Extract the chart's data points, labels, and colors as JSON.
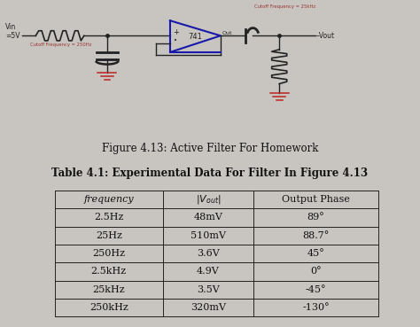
{
  "fig_caption": "Figure 4.13: Active Filter For Homework",
  "table_caption": "Table 4.1: Experimental Data For Filter In Figure 4.13",
  "rows": [
    [
      "2.5Hz",
      "48mV",
      "89°"
    ],
    [
      "25Hz",
      "510mV",
      "88.7°"
    ],
    [
      "250Hz",
      "3.6V",
      "45°"
    ],
    [
      "2.5kHz",
      "4.9V",
      "0°"
    ],
    [
      "25kHz",
      "3.5V",
      "-45°"
    ],
    [
      "250kHz",
      "320mV",
      "-130°"
    ]
  ],
  "background_color": "#c8c5c0",
  "table_edge_color": "#222222",
  "text_color": "#111111",
  "circuit_color": "#1a1aaa",
  "wire_color": "#222222",
  "red_text_color": "#993333",
  "cutoff_label_left": "Cutoff Frequency = 250Hz",
  "cutoff_label_right": "Cutoff Frequency = 25kHz",
  "vin_label": "Vin\n=5V",
  "vout_label": "–Vout",
  "opamp_label": "741",
  "out_label": "Out"
}
